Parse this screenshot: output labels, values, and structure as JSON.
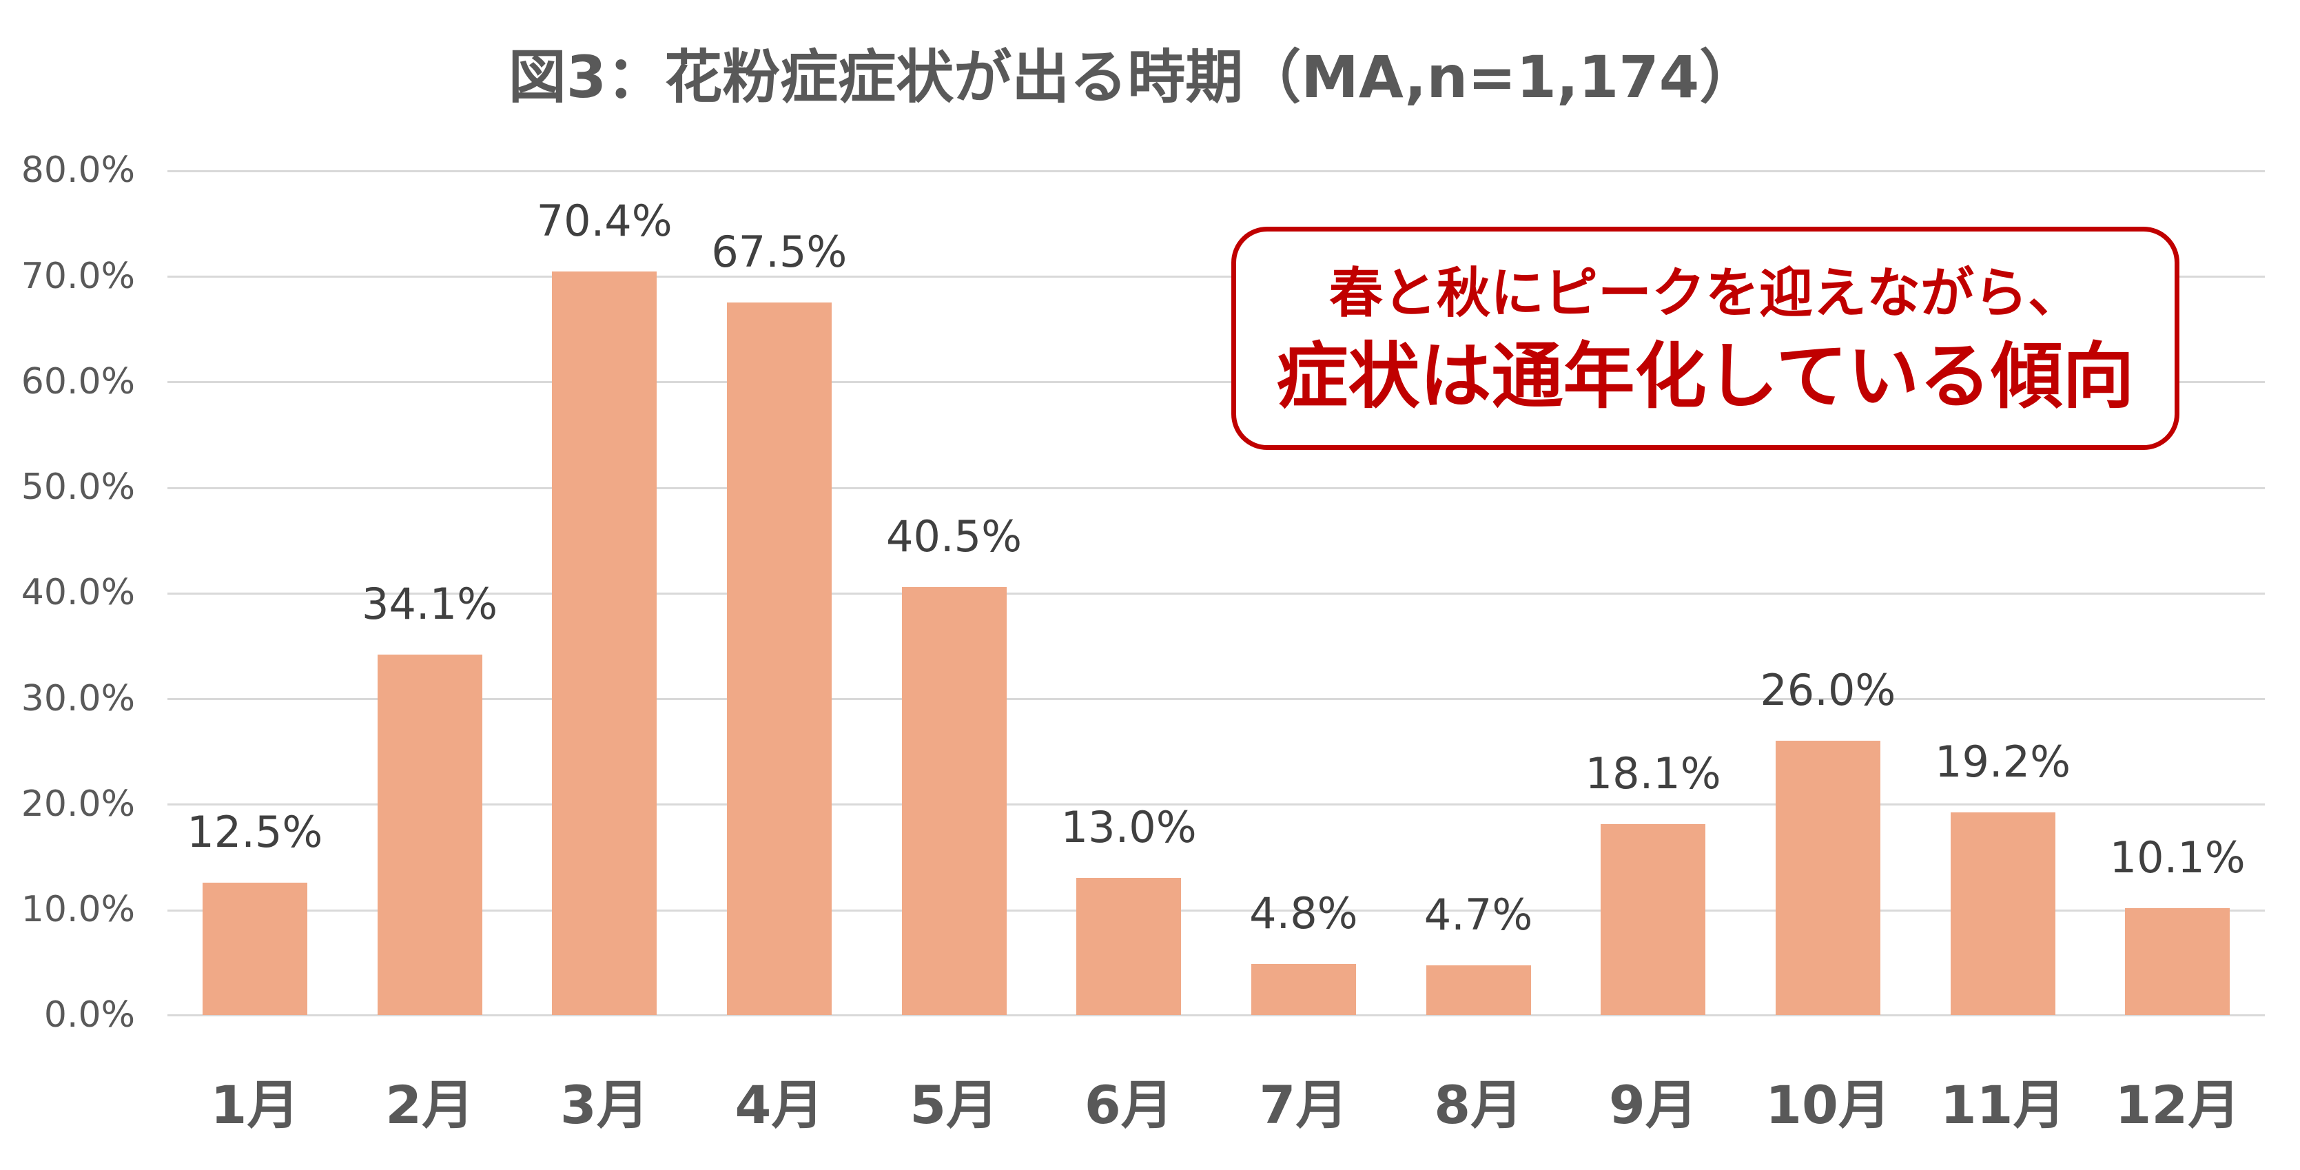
{
  "title": "図3：花粉症症状が出る時期（MA,n=1,174）",
  "colors": {
    "bar": "#F0A987",
    "gridline": "#D9D9D9",
    "axis_text": "#595959",
    "data_label": "#404040",
    "callout": "#C00000"
  },
  "y_axis": {
    "ticks": [
      "80.0%",
      "70.0%",
      "60.0%",
      "50.0%",
      "40.0%",
      "30.0%",
      "20.0%",
      "10.0%",
      "0.0%"
    ]
  },
  "callout": {
    "line1": "春と秋にピークを迎えながら、",
    "line2": "症状は通年化している傾向"
  },
  "bars": [
    {
      "month": "1月",
      "value": 12.5,
      "label": "12.5%"
    },
    {
      "month": "2月",
      "value": 34.1,
      "label": "34.1%"
    },
    {
      "month": "3月",
      "value": 70.4,
      "label": "70.4%"
    },
    {
      "month": "4月",
      "value": 67.5,
      "label": "67.5%"
    },
    {
      "month": "5月",
      "value": 40.5,
      "label": "40.5%"
    },
    {
      "month": "6月",
      "value": 13.0,
      "label": "13.0%"
    },
    {
      "month": "7月",
      "value": 4.8,
      "label": "4.8%"
    },
    {
      "month": "8月",
      "value": 4.7,
      "label": "4.7%"
    },
    {
      "month": "9月",
      "value": 18.1,
      "label": "18.1%"
    },
    {
      "month": "10月",
      "value": 26.0,
      "label": "26.0%"
    },
    {
      "month": "11月",
      "value": 19.2,
      "label": "19.2%"
    },
    {
      "month": "12月",
      "value": 10.1,
      "label": "10.1%"
    }
  ],
  "chart_data": {
    "type": "bar",
    "title": "図3：花粉症症状が出る時期（MA,n=1,174）",
    "categories": [
      "1月",
      "2月",
      "3月",
      "4月",
      "5月",
      "6月",
      "7月",
      "8月",
      "9月",
      "10月",
      "11月",
      "12月"
    ],
    "values": [
      12.5,
      34.1,
      70.4,
      67.5,
      40.5,
      13.0,
      4.8,
      4.7,
      18.1,
      26.0,
      19.2,
      10.1
    ],
    "value_format": "percent",
    "xlabel": "",
    "ylabel": "",
    "ylim": [
      0,
      80
    ],
    "yticks": [
      0,
      10,
      20,
      30,
      40,
      50,
      60,
      70,
      80
    ],
    "grid": true,
    "legend": null,
    "data_labels": true,
    "annotations": [
      {
        "text": "春と秋にピークを迎えながら、\n症状は通年化している傾向",
        "position": "upper-right",
        "style": "rounded-box-red"
      }
    ]
  }
}
